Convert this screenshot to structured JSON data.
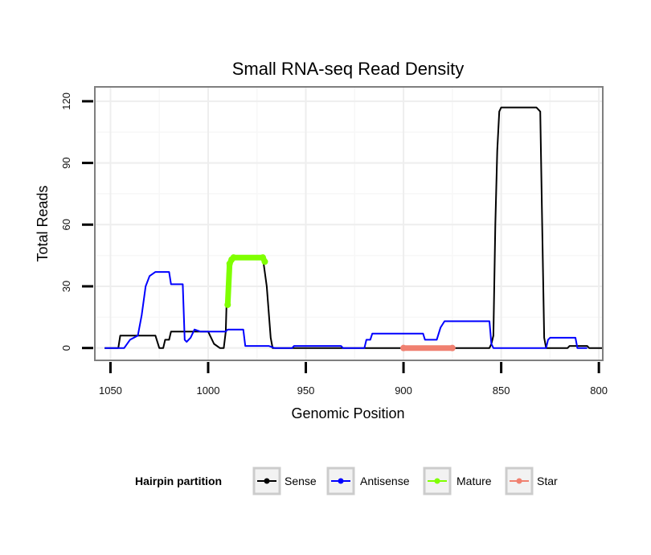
{
  "chart_data": {
    "type": "line",
    "title": "Small RNA-seq Read Density",
    "xlabel": "Genomic Position",
    "ylabel": "Total Reads",
    "xlim": [
      1058,
      798
    ],
    "ylim": [
      -6,
      127
    ],
    "x_reversed": true,
    "grid": true,
    "x_ticks": [
      1050,
      1000,
      950,
      900,
      850,
      800
    ],
    "y_ticks": [
      0,
      30,
      60,
      90,
      120
    ],
    "legend": {
      "title": "Hairpin partition",
      "placement": "bottom",
      "entries": [
        "Sense",
        "Antisense",
        "Mature",
        "Star"
      ]
    },
    "series": [
      {
        "name": "Sense",
        "color": "#000000",
        "points": [
          [
            1053,
            0
          ],
          [
            1046,
            0
          ],
          [
            1045,
            6
          ],
          [
            1027,
            6
          ],
          [
            1025,
            0
          ],
          [
            1023,
            0
          ],
          [
            1022,
            4
          ],
          [
            1020,
            4
          ],
          [
            1019,
            8
          ],
          [
            1000,
            8
          ],
          [
            999,
            6
          ],
          [
            997,
            2
          ],
          [
            994,
            0
          ],
          [
            992,
            0
          ],
          [
            991,
            8
          ],
          [
            990,
            41
          ],
          [
            988,
            44
          ],
          [
            972,
            44
          ],
          [
            970,
            30
          ],
          [
            968,
            5
          ],
          [
            967,
            0
          ],
          [
            856,
            0
          ],
          [
            855,
            2
          ],
          [
            854,
            6
          ],
          [
            853,
            60
          ],
          [
            852,
            96
          ],
          [
            851,
            115
          ],
          [
            850,
            117
          ],
          [
            832,
            117
          ],
          [
            830,
            115
          ],
          [
            829,
            60
          ],
          [
            828,
            5
          ],
          [
            827,
            0
          ],
          [
            816,
            0
          ],
          [
            815,
            1
          ],
          [
            806,
            1
          ],
          [
            805,
            0
          ],
          [
            798,
            0
          ]
        ]
      },
      {
        "name": "Antisense",
        "color": "#0000ff",
        "points": [
          [
            1053,
            0
          ],
          [
            1046,
            0
          ],
          [
            1043,
            0
          ],
          [
            1040,
            4
          ],
          [
            1036,
            6
          ],
          [
            1034,
            16
          ],
          [
            1032,
            30
          ],
          [
            1030,
            35
          ],
          [
            1027,
            37
          ],
          [
            1020,
            37
          ],
          [
            1019,
            31
          ],
          [
            1013,
            31
          ],
          [
            1012,
            4
          ],
          [
            1011,
            3
          ],
          [
            1009,
            5
          ],
          [
            1007,
            9
          ],
          [
            1004,
            8
          ],
          [
            991,
            8
          ],
          [
            990,
            9
          ],
          [
            982,
            9
          ],
          [
            981,
            1
          ],
          [
            969,
            1
          ],
          [
            966,
            0
          ],
          [
            957,
            0
          ],
          [
            956,
            1
          ],
          [
            932,
            1
          ],
          [
            931,
            0
          ],
          [
            920,
            0
          ],
          [
            919,
            4
          ],
          [
            917,
            4
          ],
          [
            916,
            7
          ],
          [
            890,
            7
          ],
          [
            889,
            4
          ],
          [
            883,
            4
          ],
          [
            881,
            10
          ],
          [
            879,
            13
          ],
          [
            870,
            13
          ],
          [
            856,
            13
          ],
          [
            855,
            2
          ],
          [
            854,
            0
          ],
          [
            830,
            0
          ],
          [
            827,
            0
          ],
          [
            826,
            4
          ],
          [
            825,
            5
          ],
          [
            812,
            5
          ],
          [
            811,
            0
          ],
          [
            806,
            0
          ]
        ]
      },
      {
        "name": "Mature",
        "color": "#7fff00",
        "points": [
          [
            990,
            21
          ],
          [
            989,
            41
          ],
          [
            988,
            43
          ],
          [
            987,
            44
          ],
          [
            972,
            44
          ],
          [
            971,
            42
          ]
        ]
      },
      {
        "name": "Star",
        "color": "#f08070",
        "points": [
          [
            900,
            0
          ],
          [
            875,
            0
          ]
        ]
      }
    ]
  }
}
